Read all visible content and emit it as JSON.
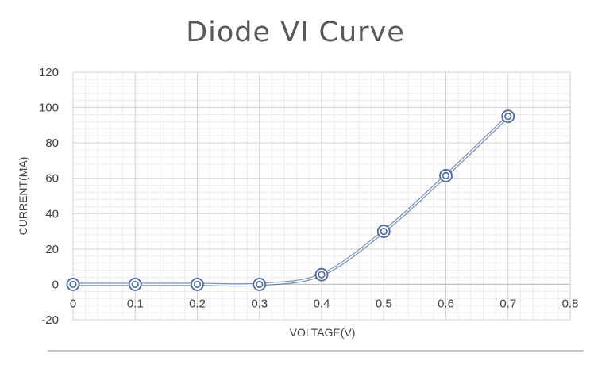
{
  "chart_data": {
    "type": "scatter",
    "title": "Diode  VI  Curve",
    "xlabel": "VOLTAGE(V)",
    "ylabel": "CURRENT(MA)",
    "xlim": [
      0,
      0.8
    ],
    "ylim": [
      -20,
      120
    ],
    "x_ticks": [
      "0",
      "0.1",
      "0.2",
      "0.3",
      "0.4",
      "0.5",
      "0.6",
      "0.7",
      "0.8"
    ],
    "y_ticks": [
      "-20",
      "0",
      "20",
      "40",
      "60",
      "80",
      "100",
      "120"
    ],
    "grid": true,
    "minor_grid": true,
    "smooth_line": true,
    "series": [
      {
        "x": [
          0,
          0.1,
          0.2,
          0.3,
          0.4,
          0.5,
          0.6,
          0.7
        ],
        "y": [
          0,
          0,
          0,
          0,
          5.5,
          30,
          61.5,
          95
        ],
        "color": "#4a6aa5",
        "marker": "double-circle"
      }
    ]
  }
}
